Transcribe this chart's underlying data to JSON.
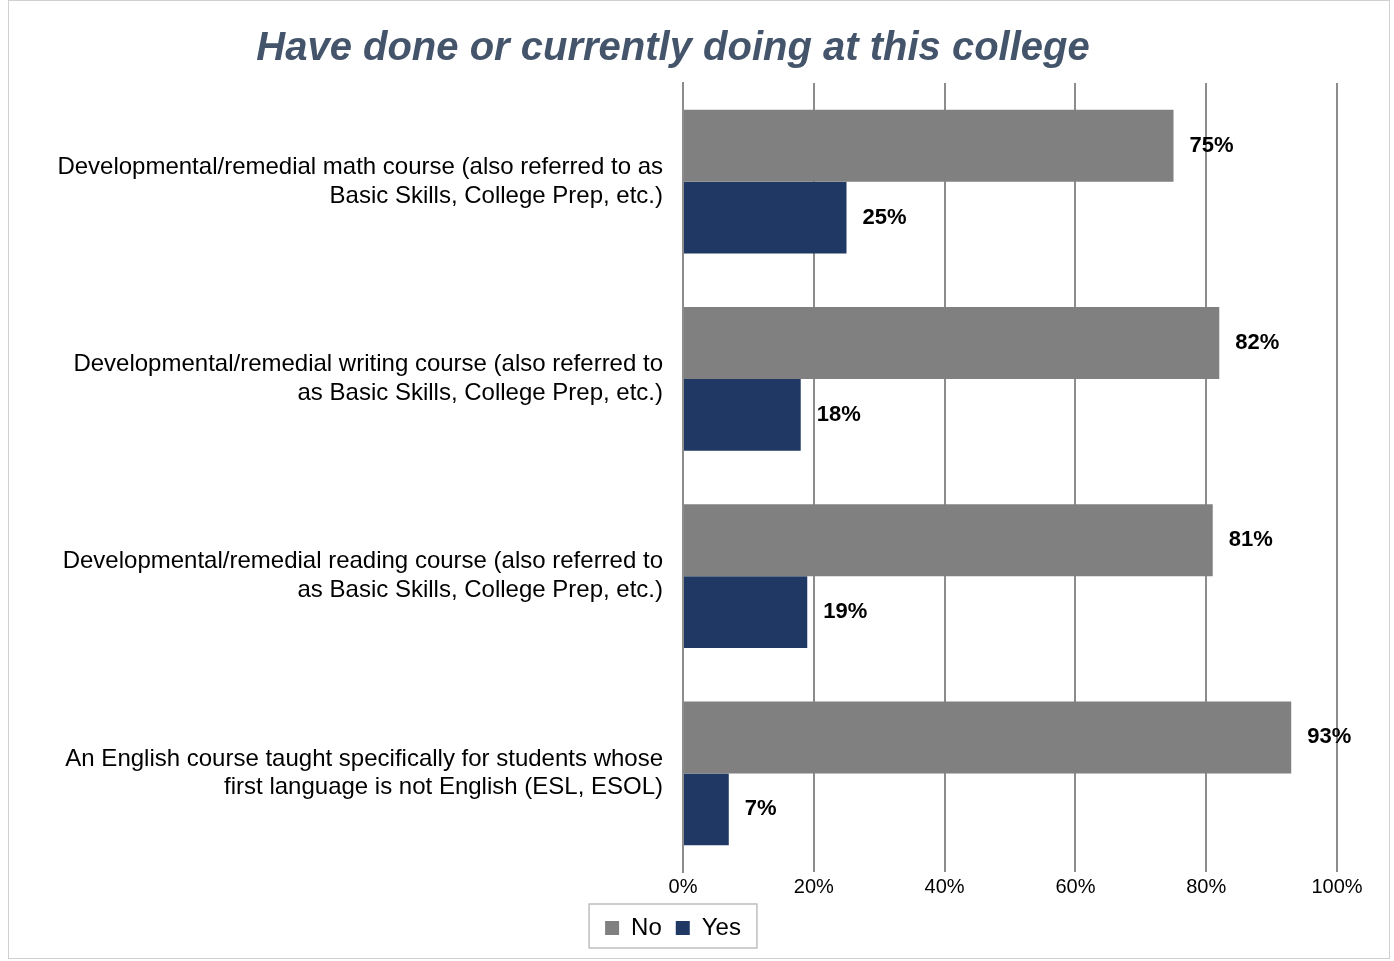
{
  "chart_data": {
    "type": "bar",
    "orientation": "horizontal",
    "title": "Have done or currently doing at this college",
    "categories": [
      "Developmental/remedial math course (also referred to as Basic Skills, College Prep, etc.)",
      "Developmental/remedial writing course (also referred to as Basic Skills, College Prep, etc.)",
      "Developmental/remedial reading course (also referred to as Basic Skills, College Prep, etc.)",
      "An English course taught specifically for students whose first language is not English (ESL, ESOL)"
    ],
    "series": [
      {
        "name": "No",
        "color": "#808080",
        "values": [
          75,
          82,
          81,
          93
        ],
        "value_labels": [
          "75%",
          "82%",
          "81%",
          "93%"
        ]
      },
      {
        "name": "Yes",
        "color": "#203864",
        "values": [
          25,
          18,
          19,
          7
        ],
        "value_labels": [
          "25%",
          "18%",
          "19%",
          "7%"
        ]
      }
    ],
    "xlim": [
      0,
      100
    ],
    "xticks": [
      {
        "value": 0,
        "label": "0%"
      },
      {
        "value": 20,
        "label": "20%"
      },
      {
        "value": 40,
        "label": "40%"
      },
      {
        "value": 60,
        "label": "60%"
      },
      {
        "value": 80,
        "label": "80%"
      },
      {
        "value": 100,
        "label": "100%"
      }
    ],
    "grid": "x",
    "legend": "bottom"
  }
}
